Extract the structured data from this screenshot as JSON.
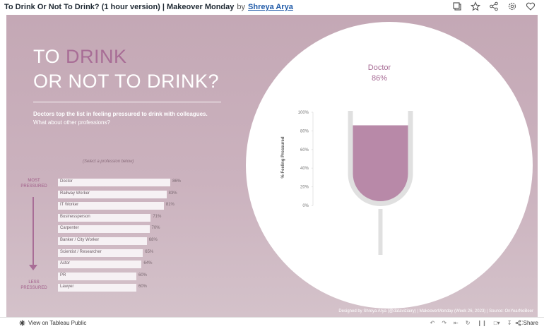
{
  "header": {
    "title": "To Drink Or Not To Drink? (1 hour version) | Makeover Monday",
    "by": "by",
    "author": "Shreya Arya"
  },
  "viz": {
    "headline_line1_prefix": "TO ",
    "headline_line1_highlight": "DRINK",
    "headline_line2": "OR NOT TO DRINK?",
    "subtitle_line1": "Doctors top the list in feeling pressured to drink with colleagues.",
    "subtitle_line2": "What about other professions?",
    "select_hint": "(Select a profession below)",
    "most_pressured": "MOST PRESSURED",
    "less_pressured": "LESS PRESSURED",
    "selected_profession": "Doctor",
    "selected_value": "86%",
    "glass_axis_label": "% Feeling Pressured",
    "glass_ticks": [
      "100%",
      "80%",
      "60%",
      "40%",
      "20%",
      "0%"
    ],
    "credit": "Designed by Shreya Arya (@dataviziairy) | MakeoverMonday (Week 26, 2023) | Source: OnYearNoBeer",
    "colors": {
      "accent": "#a86d96",
      "glass_fill": "#b889a8",
      "glass_outline": "#e0e0e0"
    }
  },
  "chart_data": {
    "type": "bar",
    "categories": [
      "Doctor",
      "Railway Worker",
      "IT Worker",
      "Businessperson",
      "Carpenter",
      "Banker / City Worker",
      "Scientist / Researcher",
      "Actor",
      "PR",
      "Lawyer"
    ],
    "values": [
      86,
      83,
      81,
      71,
      70,
      68,
      65,
      64,
      60,
      60
    ],
    "value_labels": [
      "86%",
      "83%",
      "81%",
      "71%",
      "70%",
      "68%",
      "65%",
      "64%",
      "60%",
      "60%"
    ],
    "ylim": [
      0,
      100
    ],
    "highlight_value": 86
  },
  "footer": {
    "view_label": "View on Tableau Public",
    "share_label": "Share"
  }
}
